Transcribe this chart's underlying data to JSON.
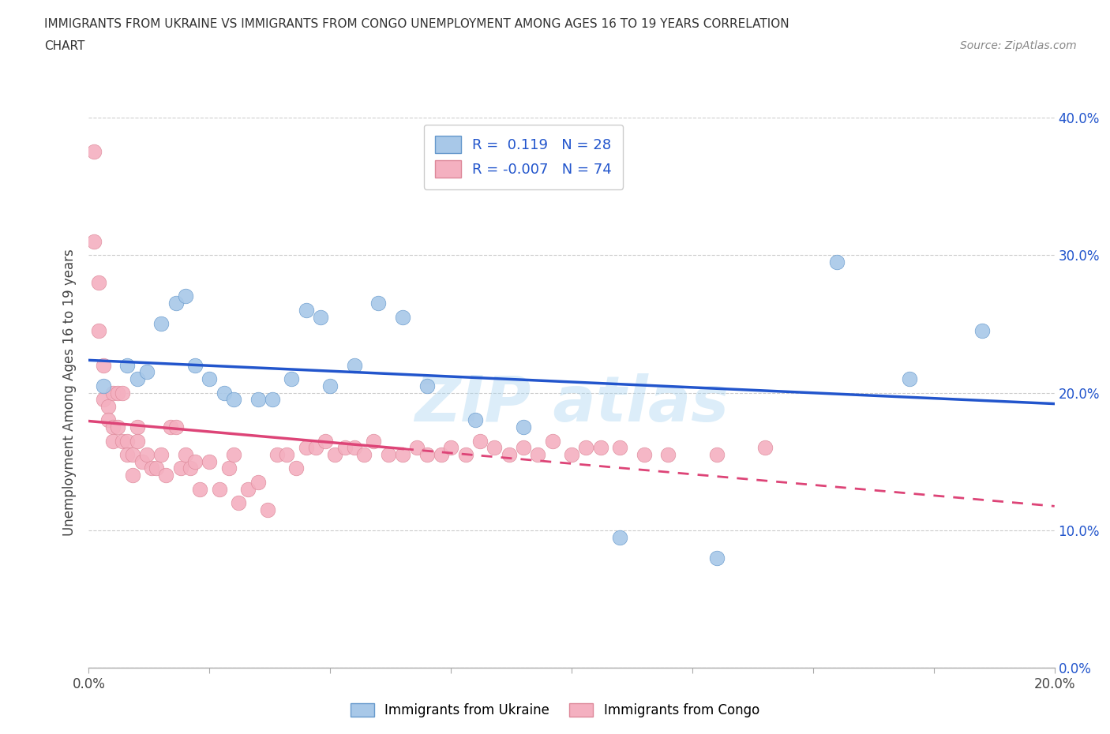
{
  "title_line1": "IMMIGRANTS FROM UKRAINE VS IMMIGRANTS FROM CONGO UNEMPLOYMENT AMONG AGES 16 TO 19 YEARS CORRELATION",
  "title_line2": "CHART",
  "source": "Source: ZipAtlas.com",
  "ylabel": "Unemployment Among Ages 16 to 19 years",
  "xlabel_ukraine": "Immigrants from Ukraine",
  "xlabel_congo": "Immigrants from Congo",
  "xlim": [
    0.0,
    0.2
  ],
  "ylim": [
    0.0,
    0.4
  ],
  "ukraine_color": "#a8c8e8",
  "ukraine_edge": "#6699cc",
  "congo_color": "#f4b0c0",
  "congo_edge": "#dd8899",
  "trendline_ukraine_color": "#2255cc",
  "trendline_congo_color": "#dd4477",
  "ukraine_R": 0.119,
  "ukraine_N": 28,
  "congo_R": -0.007,
  "congo_N": 74,
  "ukraine_scatter_x": [
    0.003,
    0.008,
    0.01,
    0.012,
    0.015,
    0.018,
    0.02,
    0.022,
    0.025,
    0.028,
    0.03,
    0.035,
    0.038,
    0.042,
    0.045,
    0.048,
    0.05,
    0.055,
    0.06,
    0.065,
    0.07,
    0.08,
    0.09,
    0.11,
    0.13,
    0.155,
    0.17,
    0.185
  ],
  "ukraine_scatter_y": [
    0.205,
    0.22,
    0.21,
    0.215,
    0.25,
    0.265,
    0.27,
    0.22,
    0.21,
    0.2,
    0.195,
    0.195,
    0.195,
    0.21,
    0.26,
    0.255,
    0.205,
    0.22,
    0.265,
    0.255,
    0.205,
    0.18,
    0.175,
    0.095,
    0.08,
    0.295,
    0.21,
    0.245
  ],
  "congo_scatter_x": [
    0.001,
    0.001,
    0.002,
    0.002,
    0.003,
    0.003,
    0.004,
    0.004,
    0.005,
    0.005,
    0.005,
    0.006,
    0.006,
    0.007,
    0.007,
    0.008,
    0.008,
    0.009,
    0.009,
    0.01,
    0.01,
    0.011,
    0.012,
    0.013,
    0.014,
    0.015,
    0.016,
    0.017,
    0.018,
    0.019,
    0.02,
    0.021,
    0.022,
    0.023,
    0.025,
    0.027,
    0.029,
    0.03,
    0.031,
    0.033,
    0.035,
    0.037,
    0.039,
    0.041,
    0.043,
    0.045,
    0.047,
    0.049,
    0.051,
    0.053,
    0.055,
    0.057,
    0.059,
    0.062,
    0.065,
    0.068,
    0.07,
    0.073,
    0.075,
    0.078,
    0.081,
    0.084,
    0.087,
    0.09,
    0.093,
    0.096,
    0.1,
    0.103,
    0.106,
    0.11,
    0.115,
    0.12,
    0.13,
    0.14
  ],
  "congo_scatter_y": [
    0.375,
    0.31,
    0.28,
    0.245,
    0.22,
    0.195,
    0.19,
    0.18,
    0.2,
    0.175,
    0.165,
    0.2,
    0.175,
    0.2,
    0.165,
    0.165,
    0.155,
    0.155,
    0.14,
    0.175,
    0.165,
    0.15,
    0.155,
    0.145,
    0.145,
    0.155,
    0.14,
    0.175,
    0.175,
    0.145,
    0.155,
    0.145,
    0.15,
    0.13,
    0.15,
    0.13,
    0.145,
    0.155,
    0.12,
    0.13,
    0.135,
    0.115,
    0.155,
    0.155,
    0.145,
    0.16,
    0.16,
    0.165,
    0.155,
    0.16,
    0.16,
    0.155,
    0.165,
    0.155,
    0.155,
    0.16,
    0.155,
    0.155,
    0.16,
    0.155,
    0.165,
    0.16,
    0.155,
    0.16,
    0.155,
    0.165,
    0.155,
    0.16,
    0.16,
    0.16,
    0.155,
    0.155,
    0.155,
    0.16
  ],
  "watermark_text": "ZIP atlas",
  "grid_color": "#cccccc",
  "background_color": "#ffffff",
  "ytick_values": [
    0.0,
    0.1,
    0.2,
    0.3,
    0.4
  ],
  "ytick_labels": [
    "0.0%",
    "10.0%",
    "20.0%",
    "30.0%",
    "40.0%"
  ],
  "xtick_values": [
    0.0,
    0.025,
    0.05,
    0.075,
    0.1,
    0.125,
    0.15,
    0.175,
    0.2
  ],
  "xtick_edge_labels": [
    "0.0%",
    "20.0%"
  ]
}
